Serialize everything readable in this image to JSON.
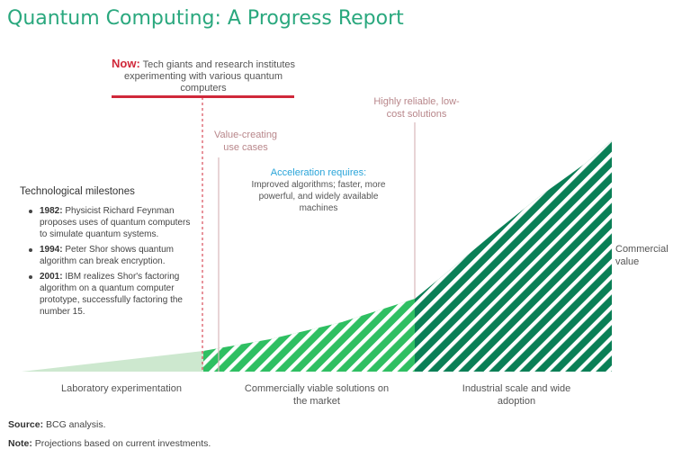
{
  "title": "Quantum Computing: A Progress Report",
  "now": {
    "label": "Now:",
    "text": "Tech giants and research institutes experimenting with various quantum computers"
  },
  "annotations": {
    "value_creating": "Value-creating use cases",
    "highly_reliable": "Highly reliable, low-cost solutions",
    "acceleration_title": "Acceleration requires:",
    "acceleration_text": "Improved algorithms; faster, more powerful, and widely available machines",
    "commercial_value": "Commercial value"
  },
  "milestones": {
    "title": "Technological milestones",
    "items": [
      {
        "year": "1982:",
        "text": "Physicist Richard Feynman proposes uses of quantum computers to simulate quantum systems."
      },
      {
        "year": "1994:",
        "text": "Peter Shor shows quantum algorithm can break encryption."
      },
      {
        "year": "2001:",
        "text": "IBM realizes Shor's factoring algorithm on a quantum computer prototype, successfully factoring the number 15."
      }
    ]
  },
  "phases": {
    "phase1": "Laboratory experimentation",
    "phase2": "Commercially viable solutions on the market",
    "phase3": "Industrial scale and wide adoption"
  },
  "footer": {
    "source_label": "Source:",
    "source_text": "BCG analysis.",
    "note_label": "Note:",
    "note_text": "Projections based on current investments."
  },
  "colors": {
    "title": "#2aa87e",
    "phase1_fill": "#cde8cf",
    "phase2_fill": "#2fbf62",
    "phase3_fill": "#0a7f56",
    "now_accent": "#d0283a",
    "annotation_pink": "#b8868a",
    "acceleration_blue": "#29a4d9"
  }
}
